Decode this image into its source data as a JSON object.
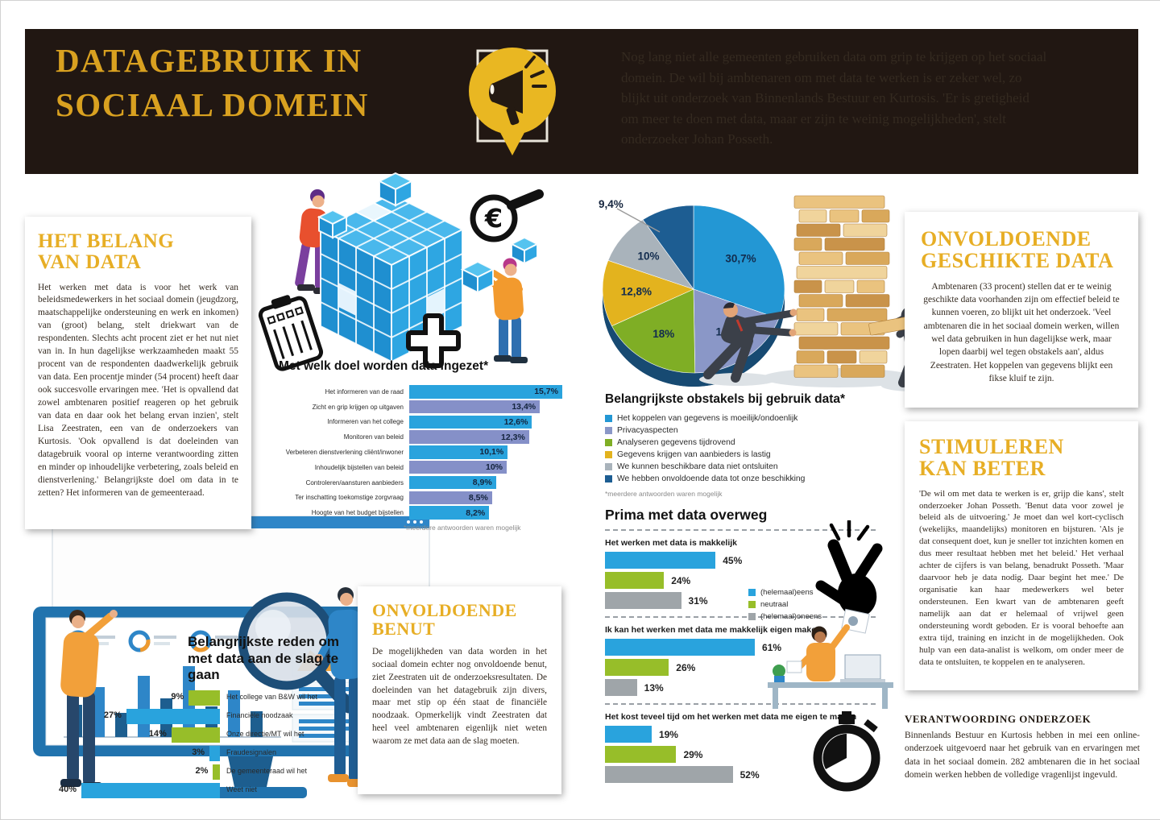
{
  "header": {
    "title": "DATAGEBRUIK IN\nSOCIAAL DOMEIN",
    "intro": "Nog lang niet alle gemeenten gebruiken data om grip te krijgen op het sociaal domein. De wil bij ambtenaren om met data te werken is er zeker wel, zo blijkt uit onderzoek van Binnenlands Bestuur en Kurtosis. 'Er is gretigheid om meer te doen met data, maar er zijn te weinig mogelijkheden', stelt onderzoeker Johan Posseth.",
    "badge_icon": "megaphone-icon"
  },
  "articles": {
    "belang": {
      "title": "HET BELANG\nVAN DATA",
      "body": "Het werken met data is voor het werk van beleidsmedewerkers in het sociaal domein (jeugdzorg, maatschappelijke ondersteuning en werk en inkomen) van (groot) belang, stelt driekwart van de respondenten. Slechts acht procent ziet er het nut niet van in. In hun dagelijkse werkzaamheden maakt 55 procent van de respondenten daadwerkelijk gebruik van data. Een procentje minder (54 procent) heeft daar ook succesvolle ervaringen mee. 'Het is opvallend dat zowel ambtenaren positief reageren op het gebruik van data en daar ook het belang ervan inzien', stelt Lisa Zeestraten, een van de onderzoekers van Kurtosis. 'Ook opvallend is dat doeleinden van datagebruik vooral op interne verantwoording zitten en minder op inhoudelijke verbetering, zoals beleid en dienstverlening.' Belangrijkste doel om data in te zetten? Het informeren van de gemeenteraad."
    },
    "geschikt": {
      "title": "ONVOLDOENDE\nGESCHIKTE DATA",
      "body": "Ambtenaren (33 procent) stellen dat er te weinig geschikte data voorhanden zijn om effectief beleid te kunnen voeren, zo blijkt uit het onderzoek. 'Veel ambtenaren die in het sociaal domein werken, willen wel data gebruiken in hun dagelijkse werk, maar lopen daarbij wel tegen obstakels aan', aldus Zeestraten. Het koppelen van gegevens blijkt een fikse kluif te zijn."
    },
    "stimuleren": {
      "title": "STIMULEREN\nKAN BETER",
      "body": "'De wil om met data te werken is er, grijp die kans', stelt onderzoeker Johan Posseth. 'Benut data voor zowel je beleid als de uitvoering.' Je moet dan wel kort-cyclisch (wekelijks, maandelijks) monitoren en bijsturen. 'Als je dat consequent doet, kun je sneller tot inzichten komen en dus meer resultaat hebben met het beleid.' Het verhaal achter de cijfers is van belang, benadrukt Posseth. 'Maar daarvoor heb je data nodig. Daar begint het mee.' De organisatie kan haar medewerkers wel beter ondersteunen. Een kwart van de ambtenaren geeft namelijk aan dat er helemaal of vrijwel geen ondersteuning wordt geboden. Er is vooral behoefte aan extra tijd, training en inzicht in de mogelijkheden. Ook hulp van een data-analist is welkom, om onder meer de data te ontsluiten, te koppelen en te analyseren."
    },
    "benut": {
      "title": "ONVOLDOENDE\nBENUT",
      "body": "De mogelijkheden van data worden in het sociaal domein echter nog onvoldoende benut, ziet Zeestraten uit de onderzoeksresultaten. De doeleinden van het datagebruik zijn divers, maar met stip op één staat de financiële noodzaak. Opmerkelijk vindt Zeestraten dat heel veel ambtenaren eigenlijk niet weten waarom ze met data aan de slag moeten."
    },
    "verantwoording": {
      "title": "VERANTWOORDING ONDERZOEK",
      "body": "Binnenlands Bestuur en Kurtosis hebben in mei een online-onderzoek uitgevoerd naar het gebruik van en ervaringen met data in het sociaal domein. 282 ambtenaren die in het sociaal domein werken hebben de volledige vragenlijst ingevuld."
    }
  },
  "colors": {
    "blue": "#29a3dd",
    "periwinkle": "#8590c8",
    "green": "#97be29",
    "gray": "#9fa5a9",
    "pie_blue": "#2397d4",
    "pie_periwinkle": "#8a97c7",
    "pie_green": "#7fae25",
    "pie_yellow": "#e3b31e",
    "pie_gray": "#a9b3bb",
    "pie_darkblue": "#1d5d92",
    "gold": "#e7ae25",
    "header_bg": "#211712"
  },
  "chart_data": [
    {
      "type": "bar",
      "title": "Met welk doel worden data ingezet*",
      "footnote": "*meerdere antwoorden waren mogelijk",
      "orientation": "horizontal",
      "categories": [
        "Het informeren van de raad",
        "Zicht en grip krijgen op uitgaven",
        "Informeren van het college",
        "Monitoren van beleid",
        "Verbeteren dienstverlening cliënt/inwoner",
        "Inhoudelijk bijstellen van beleid",
        "Controleren/aansturen aanbieders",
        "Ter inschatting toekomstige zorgvraag",
        "Hoogte van het budget bijstellen"
      ],
      "values": [
        15.7,
        13.4,
        12.6,
        12.3,
        10.1,
        10,
        8.9,
        8.5,
        8.2
      ],
      "value_labels": [
        "15,7%",
        "13,4%",
        "12,6%",
        "12,3%",
        "10,1%",
        "10%",
        "8,9%",
        "8,5%",
        "8,2%"
      ],
      "bar_colors_alternate": [
        "#29a3dd",
        "#8590c8"
      ]
    },
    {
      "type": "pie",
      "title": "Belangrijkste obstakels bij gebruik data*",
      "footnote": "*meerdere antwoorden waren mogelijk",
      "slices": [
        {
          "label": "Het koppelen van gegevens is moeilijk/ondoenlijk",
          "value": 30.7,
          "value_label": "30,7%",
          "color": "#2397d4"
        },
        {
          "label": "Privacyaspecten",
          "value": 19,
          "value_label": "19%",
          "color": "#8a97c7"
        },
        {
          "label": "Analyseren gegevens tijdrovend",
          "value": 18,
          "value_label": "18%",
          "color": "#7fae25"
        },
        {
          "label": "Gegevens krijgen van aanbieders is lastig",
          "value": 12.8,
          "value_label": "12,8%",
          "color": "#e3b31e"
        },
        {
          "label": "We kunnen beschikbare data niet ontsluiten",
          "value": 10,
          "value_label": "10%",
          "color": "#a9b3bb"
        },
        {
          "label": "We hebben onvoldoende data tot onze beschikking",
          "value": 9.4,
          "value_label": "9,4%",
          "color": "#1d5d92"
        }
      ]
    },
    {
      "type": "bar-groups",
      "title": "Prima met data overweg",
      "legend": [
        {
          "label": "(helemaal)eens",
          "color": "#29a3dd"
        },
        {
          "label": "neutraal",
          "color": "#97be29"
        },
        {
          "label": "(helemaal)oneens",
          "color": "#9fa5a9"
        }
      ],
      "groups": [
        {
          "question": "Het werken met data is makkelijk",
          "values": [
            45,
            24,
            31
          ],
          "value_labels": [
            "45%",
            "24%",
            "31%"
          ],
          "icon": "snapping-fingers-icon"
        },
        {
          "question": "Ik kan het werken met data me makkelijk eigen maken",
          "values": [
            61,
            26,
            13
          ],
          "value_labels": [
            "61%",
            "26%",
            "13%"
          ],
          "icon": "person-presenting-data-illustration"
        },
        {
          "question": "Het kost teveel tijd om het werken met data me eigen te maken",
          "values": [
            19,
            29,
            52
          ],
          "value_labels": [
            "19%",
            "29%",
            "52%"
          ],
          "icon": "stopwatch-icon"
        }
      ]
    },
    {
      "type": "bar",
      "title": "Belangrijkste reden om met data aan de slag te gaan",
      "orientation": "horizontal-right-aligned",
      "categories": [
        "Het college van B&W wil het",
        "Financiële noodzaak",
        "Onze directie/MT wil het",
        "Fraudesignalen",
        "De gemeenteraad wil het",
        "Weet niet"
      ],
      "values": [
        9,
        27,
        14,
        3,
        2,
        40
      ],
      "value_labels": [
        "9%",
        "27%",
        "14%",
        "3%",
        "2%",
        "40%"
      ],
      "bar_colors_alternate": [
        "#97be29",
        "#29a3dd"
      ]
    }
  ]
}
